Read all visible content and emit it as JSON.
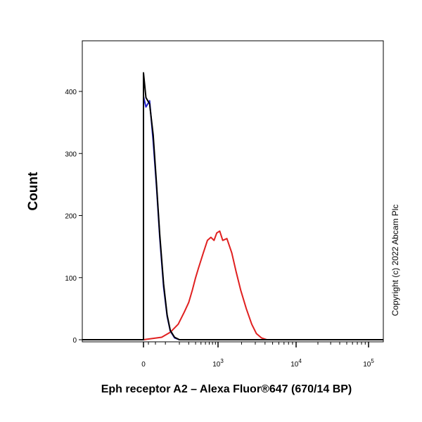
{
  "chart_data": {
    "type": "line",
    "chart_kind": "flow cytometry histogram",
    "xlabel": "Eph receptor A2 – Alexa Fluor®647 (670/14 BP)",
    "ylabel": "Count",
    "x_scale": "biexponential (logicle)",
    "xlim": [
      -800,
      100000
    ],
    "ylim": [
      0,
      480
    ],
    "grid": false,
    "legend": "none",
    "y_ticks": [
      {
        "value": 0,
        "label": "0"
      },
      {
        "value": 100,
        "label": "100"
      },
      {
        "value": 200,
        "label": "200"
      },
      {
        "value": 300,
        "label": "300"
      },
      {
        "value": 400,
        "label": "400"
      }
    ],
    "x_ticks": [
      {
        "value": 0,
        "label": "0",
        "exp": ""
      },
      {
        "value": 1000,
        "label": "10",
        "exp": "3"
      },
      {
        "value": 10000,
        "label": "10",
        "exp": "4"
      },
      {
        "value": 100000,
        "label": "10",
        "exp": "5"
      }
    ],
    "series": [
      {
        "color": "#000000",
        "x": [
          -170,
          -120,
          -85,
          -60,
          -40,
          -20,
          -5,
          0,
          10,
          25,
          40,
          55,
          70,
          90,
          110,
          130,
          160,
          200
        ],
        "y": [
          0,
          30,
          120,
          240,
          330,
          395,
          425,
          430,
          390,
          380,
          330,
          250,
          170,
          90,
          40,
          15,
          4,
          0
        ]
      },
      {
        "color": "#2222cc",
        "x": [
          -170,
          -120,
          -85,
          -60,
          -40,
          -25,
          -10,
          0,
          10,
          25,
          40,
          55,
          70,
          90,
          110,
          130,
          160,
          200
        ],
        "y": [
          0,
          28,
          115,
          235,
          325,
          385,
          395,
          392,
          375,
          385,
          320,
          245,
          165,
          85,
          38,
          14,
          3,
          0
        ]
      },
      {
        "color": "#e02020",
        "x": [
          0,
          80,
          130,
          190,
          250,
          300,
          350,
          400,
          450,
          550,
          650,
          750,
          850,
          950,
          1050,
          1150,
          1300,
          1500,
          1700,
          1950,
          2300,
          2700,
          3100,
          3600,
          4200
        ],
        "y": [
          0,
          4,
          12,
          25,
          45,
          60,
          80,
          100,
          115,
          140,
          160,
          165,
          160,
          172,
          175,
          160,
          163,
          140,
          110,
          80,
          50,
          25,
          10,
          3,
          0
        ]
      }
    ]
  },
  "copyright": "Copyright (c) 2022 Abcam Plc",
  "colors": {
    "black_series": "#000000",
    "blue_series": "#2222cc",
    "red_series": "#e02020"
  }
}
